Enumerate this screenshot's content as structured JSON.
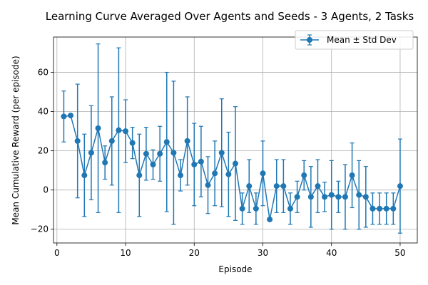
{
  "chart_data": {
    "type": "line",
    "title": "Learning Curve Averaged Over Agents and Seeds - 3 Agents, 2 Tasks",
    "xlabel": "Episode",
    "ylabel": "Mean Cumulative Reward (per episode)",
    "xlim": [
      -0.5,
      52.5
    ],
    "ylim": [
      -27,
      78
    ],
    "xticks": [
      0,
      10,
      20,
      30,
      40,
      50
    ],
    "yticks": [
      -20,
      0,
      20,
      40,
      60
    ],
    "grid": true,
    "legend_position": "top-right",
    "series": [
      {
        "name": "Mean ± Std Dev",
        "color": "#1f77b4",
        "x": [
          1,
          2,
          3,
          4,
          5,
          6,
          7,
          8,
          9,
          10,
          11,
          12,
          13,
          14,
          15,
          16,
          17,
          18,
          19,
          20,
          21,
          22,
          23,
          24,
          25,
          26,
          27,
          28,
          29,
          30,
          31,
          32,
          33,
          34,
          35,
          36,
          37,
          38,
          39,
          40,
          41,
          42,
          43,
          44,
          45,
          46,
          47,
          48,
          49,
          50
        ],
        "y": [
          37.5,
          38,
          25,
          7.5,
          19,
          31.5,
          14,
          25,
          30.5,
          30,
          24,
          7.5,
          18.5,
          13,
          18.5,
          24.5,
          19,
          7.5,
          25,
          13,
          14.5,
          2.5,
          8.5,
          19,
          8,
          13.5,
          -9.5,
          2,
          -9.5,
          8.5,
          -15,
          2,
          2,
          -9.5,
          -3.5,
          7.5,
          -3.5,
          2,
          -3.5,
          -2.5,
          -3.5,
          -3.5,
          7.5,
          -2.5,
          -3.5,
          -9.5,
          -9.5,
          -9.5,
          -9.5,
          2
        ],
        "err": [
          13,
          0,
          29,
          21,
          24,
          43,
          8.5,
          22.5,
          42,
          16,
          8,
          21,
          13.5,
          7.5,
          14,
          35.5,
          36.5,
          8,
          22.5,
          21,
          18,
          14.5,
          16.5,
          27.5,
          21.5,
          29,
          8,
          13.5,
          8,
          16.5,
          0,
          13.5,
          13.5,
          8,
          8,
          7.5,
          15.5,
          13.5,
          7.5,
          17.5,
          8,
          16.5,
          16.5,
          17.5,
          15.5,
          8,
          8,
          8,
          8,
          24
        ]
      }
    ]
  }
}
